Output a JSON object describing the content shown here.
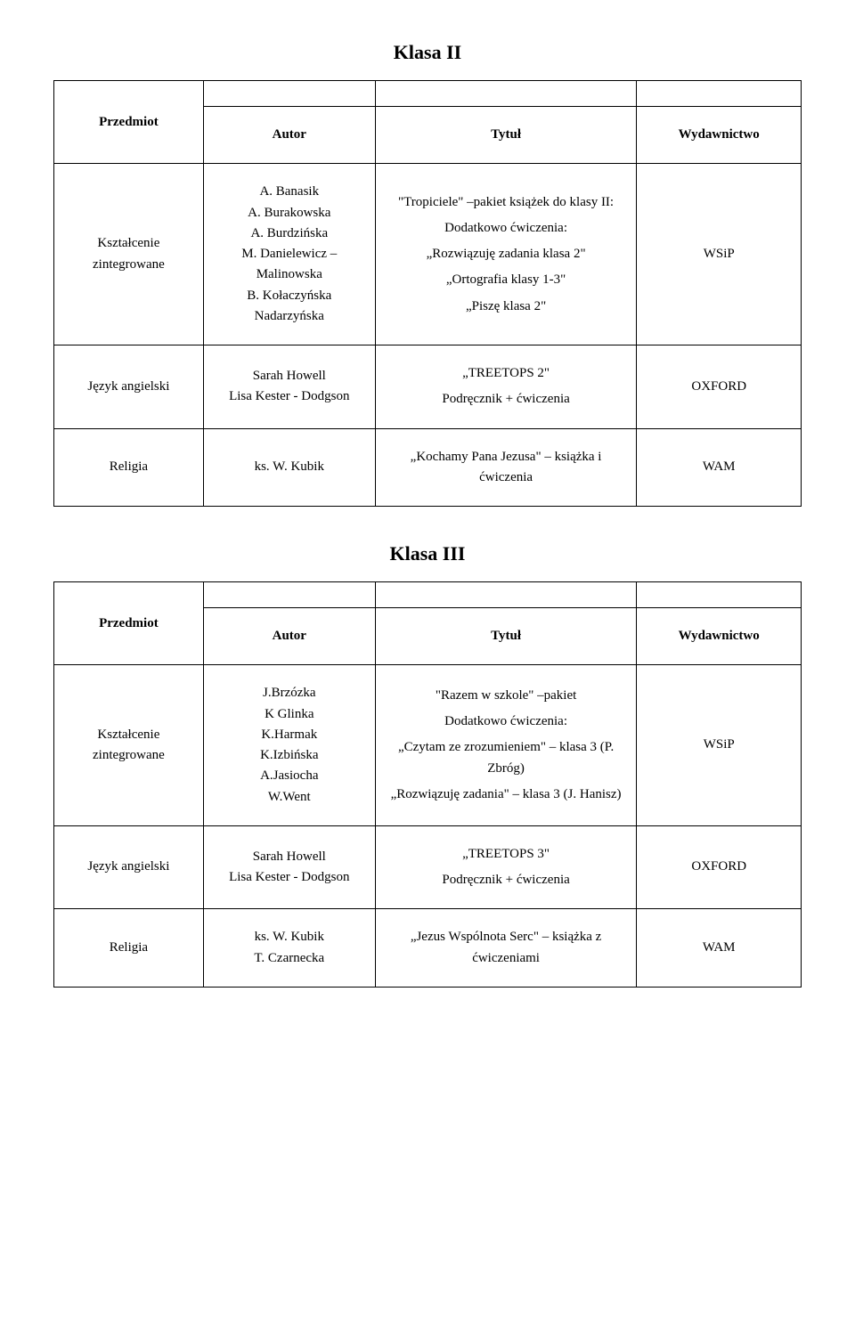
{
  "headers": {
    "przedmiot": "Przedmiot",
    "autor": "Autor",
    "tytul": "Tytuł",
    "wydawnictwo": "Wydawnictwo"
  },
  "klasa2": {
    "title": "Klasa II",
    "rows": [
      {
        "subject": "Kształcenie zintegrowane",
        "author": "A. Banasik\nA. Burakowska\nA. Burdzińska\nM. Danielewicz – Malinowska\nB. Kołaczyńska Nadarzyńska",
        "title": "\"Tropiciele\" –pakiet książek do klasy II:\n\nDodatkowo ćwiczenia:\n\n„Rozwiązuję zadania klasa 2\"\n\n„Ortografia klasy 1-3\"\n\n„Piszę klasa 2\"",
        "publisher": "WSiP"
      },
      {
        "subject": "Język angielski",
        "author": "Sarah Howell\nLisa Kester - Dodgson",
        "title": "„TREETOPS 2\"\n\nPodręcznik + ćwiczenia",
        "publisher": "OXFORD"
      },
      {
        "subject": "Religia",
        "author": "ks. W. Kubik",
        "title": "„Kochamy Pana Jezusa\" – książka i ćwiczenia",
        "publisher": "WAM"
      }
    ]
  },
  "klasa3": {
    "title": "Klasa III",
    "rows": [
      {
        "subject": "Kształcenie zintegrowane",
        "author": "J.Brzózka\nK Glinka\nK.Harmak\nK.Izbińska\nA.Jasiocha\nW.Went",
        "title": "\"Razem w szkole\" –pakiet\n\nDodatkowo ćwiczenia:\n\n„Czytam ze zrozumieniem\" – klasa 3 (P. Zbróg)\n\n„Rozwiązuję zadania\" – klasa 3 (J. Hanisz)",
        "publisher": "WSiP"
      },
      {
        "subject": "Język angielski",
        "author": "Sarah Howell\nLisa Kester - Dodgson",
        "title": "„TREETOPS 3\"\n\nPodręcznik + ćwiczenia",
        "publisher": "OXFORD"
      },
      {
        "subject": "Religia",
        "author": "ks. W. Kubik\nT. Czarnecka",
        "title": "„Jezus Wspólnota Serc\" – książka z ćwiczeniami",
        "publisher": "WAM"
      }
    ]
  }
}
